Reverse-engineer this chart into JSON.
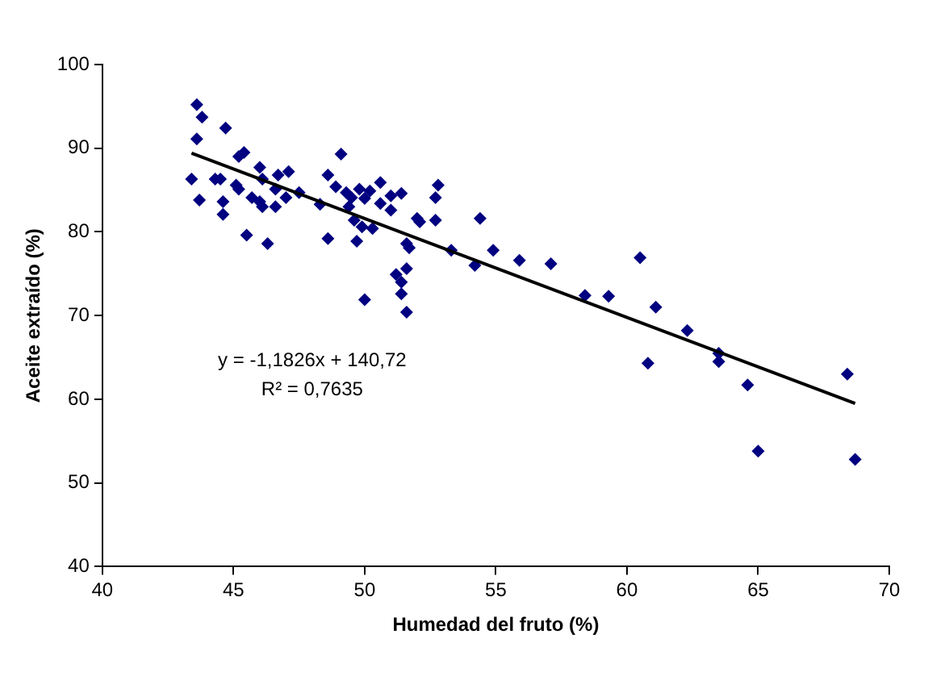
{
  "chart_data": {
    "type": "scatter",
    "xlabel": "Humedad del fruto (%)",
    "ylabel": "Aceite extraído (%)",
    "xlim": [
      40,
      70
    ],
    "xticks": [
      40,
      45,
      50,
      55,
      60,
      65,
      70
    ],
    "ylim": [
      40,
      100
    ],
    "yticks": [
      40,
      50,
      60,
      70,
      80,
      90,
      100
    ],
    "grid": false,
    "legend": false,
    "marker": "diamond",
    "annotations": [
      "y = -1,1826x + 140,72",
      "R² = 0,7635"
    ],
    "series": [
      {
        "color": "#000080",
        "x": [
          43.6,
          43.8,
          43.6,
          44.7,
          43.4,
          43.7,
          44.3,
          44.5,
          44.6,
          44.6,
          45.2,
          45.4,
          45.1,
          45.2,
          45.5,
          45.7,
          46.0,
          46.0,
          46.1,
          46.3,
          46.1,
          46.6,
          46.7,
          46.6,
          47.1,
          47.0,
          47.5,
          48.3,
          48.6,
          48.6,
          49.1,
          48.9,
          49.3,
          49.5,
          49.8,
          50.0,
          49.4,
          49.6,
          49.9,
          49.7,
          50.0,
          50.3,
          50.2,
          50.6,
          50.6,
          51.0,
          51.0,
          51.4,
          51.6,
          51.7,
          51.6,
          51.2,
          51.4,
          51.4,
          51.6,
          52.0,
          52.1,
          52.7,
          52.8,
          52.7,
          53.3,
          54.4,
          54.2,
          54.9,
          55.9,
          57.1,
          58.4,
          59.3,
          60.5,
          61.1,
          62.3,
          60.8,
          63.5,
          63.5,
          64.6,
          65.0,
          68.4,
          68.7
        ],
        "values": [
          95.2,
          93.7,
          91.1,
          92.4,
          86.3,
          83.8,
          86.3,
          86.3,
          83.6,
          82.1,
          89.0,
          89.5,
          85.6,
          85.1,
          79.6,
          84.1,
          83.6,
          87.7,
          86.3,
          78.6,
          83.0,
          85.1,
          86.8,
          83.0,
          87.2,
          84.1,
          84.7,
          83.3,
          79.2,
          86.8,
          89.3,
          85.4,
          84.7,
          84.1,
          85.1,
          84.0,
          83.0,
          81.4,
          80.6,
          78.9,
          71.9,
          80.4,
          84.9,
          85.9,
          83.4,
          84.3,
          82.6,
          84.6,
          78.6,
          78.1,
          75.6,
          74.9,
          74.0,
          72.6,
          70.4,
          81.6,
          81.2,
          81.4,
          85.6,
          84.1,
          77.8,
          81.6,
          76.0,
          77.8,
          76.6,
          76.2,
          72.4,
          72.3,
          76.9,
          71.0,
          68.2,
          64.3,
          65.5,
          64.5,
          61.7,
          53.8,
          63.0,
          52.8
        ]
      },
      {
        "type": "line",
        "color": "#000000",
        "marker": "none",
        "line_style": "solid",
        "x": [
          43.4,
          68.7
        ],
        "values": [
          89.4,
          59.5
        ]
      }
    ]
  }
}
